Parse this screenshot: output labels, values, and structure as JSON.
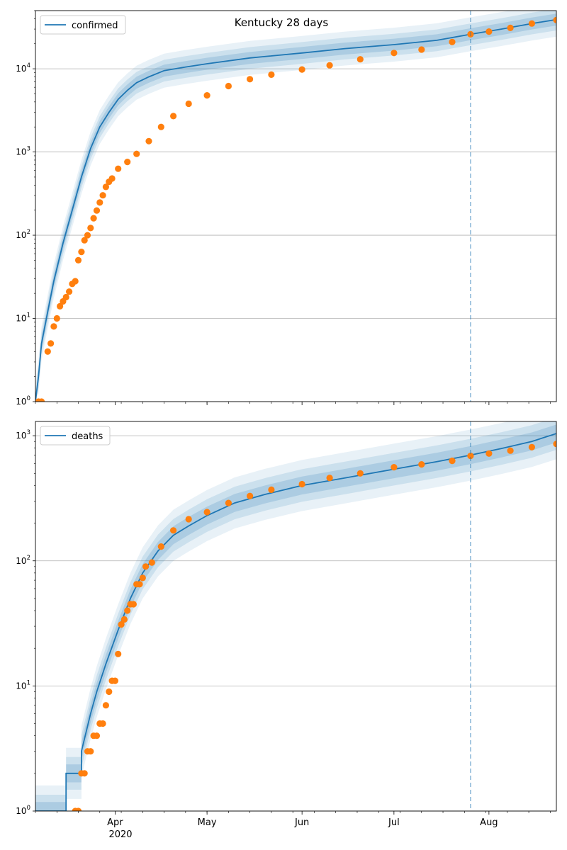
{
  "title": "Kentucky 28 days",
  "x_tick_labels": [
    "Apr",
    "May",
    "Jun",
    "Jul",
    "Aug"
  ],
  "x_year_label": "2020",
  "colors": {
    "model_line": "#1f77b4",
    "observed_points": "#ff7f0e",
    "band": "#1f77b4",
    "grid": "#b0b0b0",
    "forecast_marker": "#1f77b4"
  },
  "chart_data": [
    {
      "type": "line",
      "legend": "confirmed",
      "legend_position": "top-left",
      "y_scale": "log",
      "ylim": [
        1,
        50000
      ],
      "y_tick_values": [
        1,
        10,
        100,
        1000,
        10000
      ],
      "y_tick_labels": [
        "10^0",
        "10^1",
        "10^2",
        "10^3",
        "10^4"
      ],
      "grid": "horizontal",
      "xlim": [
        "2020-03-06",
        "2020-08-23"
      ],
      "forecast_start": "2020-07-26",
      "series": [
        {
          "name": "confirmed",
          "role": "model median",
          "x": [
            "2020-03-06",
            "2020-03-07",
            "2020-03-08",
            "2020-03-10",
            "2020-03-12",
            "2020-03-15",
            "2020-03-18",
            "2020-03-21",
            "2020-03-24",
            "2020-03-27",
            "2020-03-30",
            "2020-04-02",
            "2020-04-05",
            "2020-04-08",
            "2020-04-12",
            "2020-04-17",
            "2020-04-24",
            "2020-05-01",
            "2020-05-15",
            "2020-06-01",
            "2020-06-15",
            "2020-07-01",
            "2020-07-15",
            "2020-07-26",
            "2020-08-05",
            "2020-08-15",
            "2020-08-23"
          ],
          "y": [
            1,
            2,
            5,
            12,
            28,
            80,
            200,
            500,
            1100,
            2000,
            3000,
            4300,
            5500,
            6800,
            8000,
            9500,
            10500,
            11500,
            13500,
            15500,
            17500,
            19500,
            22000,
            26000,
            30000,
            35000,
            39000
          ]
        },
        {
          "name": "confirmed",
          "role": "observed",
          "x": [
            "2020-03-07",
            "2020-03-08",
            "2020-03-10",
            "2020-03-11",
            "2020-03-12",
            "2020-03-13",
            "2020-03-14",
            "2020-03-15",
            "2020-03-16",
            "2020-03-17",
            "2020-03-18",
            "2020-03-19",
            "2020-03-20",
            "2020-03-21",
            "2020-03-22",
            "2020-03-23",
            "2020-03-24",
            "2020-03-25",
            "2020-03-26",
            "2020-03-27",
            "2020-03-28",
            "2020-03-29",
            "2020-03-30",
            "2020-03-31",
            "2020-04-02",
            "2020-04-05",
            "2020-04-08",
            "2020-04-12",
            "2020-04-16",
            "2020-04-20",
            "2020-04-25",
            "2020-05-01",
            "2020-05-08",
            "2020-05-15",
            "2020-05-22",
            "2020-06-01",
            "2020-06-10",
            "2020-06-20",
            "2020-07-01",
            "2020-07-10",
            "2020-07-20",
            "2020-07-26",
            "2020-08-01",
            "2020-08-08",
            "2020-08-15",
            "2020-08-23"
          ],
          "y": [
            1,
            1,
            4,
            5,
            8,
            10,
            14,
            16,
            18,
            21,
            26,
            28,
            50,
            63,
            87,
            100,
            122,
            160,
            198,
            247,
            302,
            380,
            439,
            480,
            630,
            760,
            950,
            1350,
            2000,
            2700,
            3800,
            4800,
            6200,
            7500,
            8500,
            9800,
            11000,
            13000,
            15500,
            17000,
            21000,
            26000,
            28000,
            31000,
            35000,
            38500
          ]
        }
      ]
    },
    {
      "type": "line",
      "legend": "deaths",
      "legend_position": "top-left",
      "y_scale": "log",
      "ylim": [
        1,
        1300
      ],
      "y_tick_values": [
        1,
        10,
        100,
        1000
      ],
      "y_tick_labels": [
        "10^0",
        "10^1",
        "10^2",
        "10^3"
      ],
      "grid": "horizontal",
      "xlim": [
        "2020-03-06",
        "2020-08-23"
      ],
      "forecast_start": "2020-07-26",
      "series": [
        {
          "name": "deaths",
          "role": "model median",
          "x": [
            "2020-03-06",
            "2020-03-12",
            "2020-03-16",
            "2020-03-16",
            "2020-03-21",
            "2020-03-21",
            "2020-03-24",
            "2020-03-26",
            "2020-03-29",
            "2020-04-02",
            "2020-04-06",
            "2020-04-10",
            "2020-04-15",
            "2020-04-20",
            "2020-04-25",
            "2020-05-01",
            "2020-05-10",
            "2020-05-20",
            "2020-06-01",
            "2020-06-15",
            "2020-07-01",
            "2020-07-15",
            "2020-07-26",
            "2020-08-05",
            "2020-08-15",
            "2020-08-23"
          ],
          "y": [
            1,
            1,
            1,
            2,
            2,
            3,
            6,
            9,
            15,
            28,
            50,
            80,
            120,
            160,
            190,
            230,
            290,
            340,
            400,
            460,
            540,
            620,
            700,
            790,
            900,
            1040
          ]
        },
        {
          "name": "deaths",
          "role": "observed",
          "x": [
            "2020-03-19",
            "2020-03-20",
            "2020-03-21",
            "2020-03-22",
            "2020-03-23",
            "2020-03-24",
            "2020-03-25",
            "2020-03-26",
            "2020-03-27",
            "2020-03-28",
            "2020-03-29",
            "2020-03-30",
            "2020-03-31",
            "2020-04-01",
            "2020-04-02",
            "2020-04-03",
            "2020-04-04",
            "2020-04-05",
            "2020-04-06",
            "2020-04-07",
            "2020-04-08",
            "2020-04-09",
            "2020-04-10",
            "2020-04-11",
            "2020-04-13",
            "2020-04-16",
            "2020-04-20",
            "2020-04-25",
            "2020-05-01",
            "2020-05-08",
            "2020-05-15",
            "2020-05-22",
            "2020-06-01",
            "2020-06-10",
            "2020-06-20",
            "2020-07-01",
            "2020-07-10",
            "2020-07-20",
            "2020-07-26",
            "2020-08-01",
            "2020-08-08",
            "2020-08-15",
            "2020-08-23"
          ],
          "y": [
            1,
            1,
            2,
            2,
            3,
            3,
            4,
            4,
            5,
            5,
            7,
            9,
            11,
            11,
            18,
            31,
            34,
            40,
            45,
            45,
            65,
            65,
            73,
            90,
            97,
            130,
            175,
            215,
            245,
            290,
            330,
            370,
            410,
            460,
            500,
            560,
            590,
            630,
            690,
            720,
            760,
            810,
            860
          ]
        }
      ]
    }
  ]
}
